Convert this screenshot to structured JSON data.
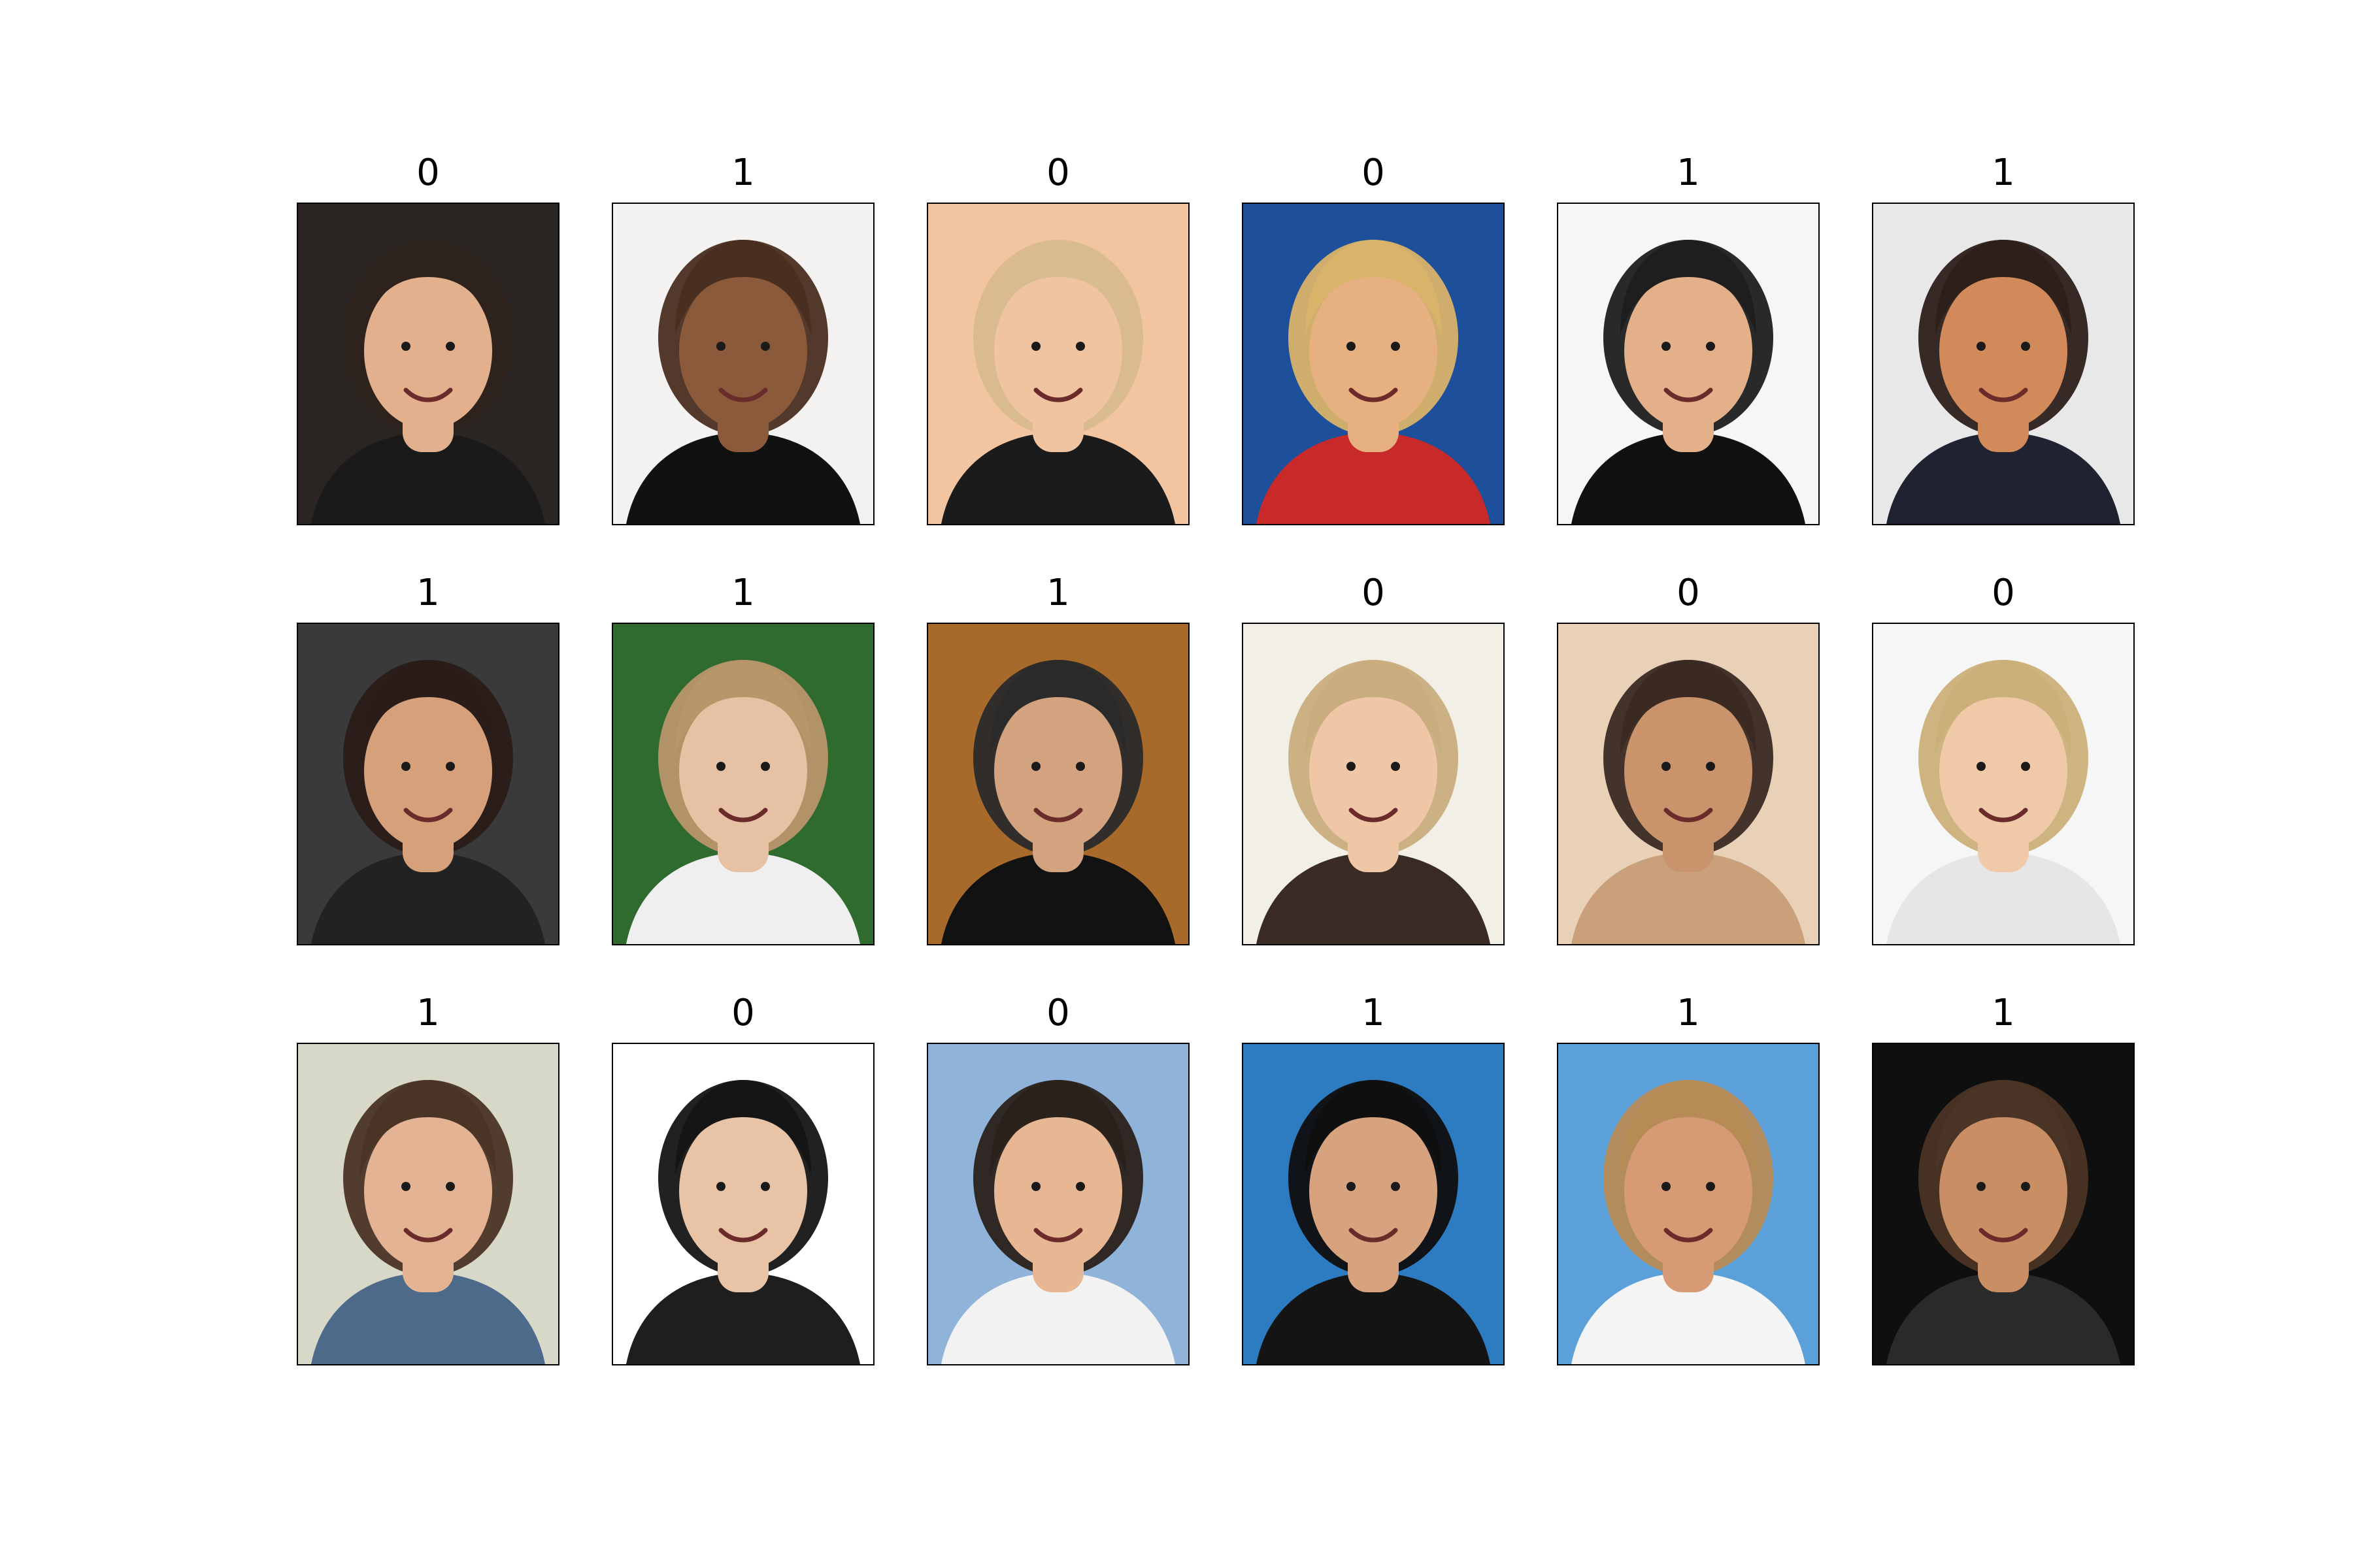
{
  "figure": {
    "grid": {
      "rows": 3,
      "cols": 6
    },
    "items": [
      {
        "label": "0",
        "bg": "#2a2522",
        "skin": "#e3b08d",
        "hair": "#2e221d",
        "clothes": "#1a1a1a"
      },
      {
        "label": "1",
        "bg": "#f3f2f0",
        "skin": "#8a5a3a",
        "hair": "#4a2e20",
        "clothes": "#111111"
      },
      {
        "label": "0",
        "bg": "#f2c5a0",
        "skin": "#f1c4a1",
        "hair": "#d8bb8e",
        "clothes": "#1b1b1b"
      },
      {
        "label": "0",
        "bg": "#1d4f9a",
        "skin": "#e6b080",
        "hair": "#d9b36a",
        "clothes": "#c82a2a"
      },
      {
        "label": "1",
        "bg": "#f6f6f6",
        "skin": "#e3b08a",
        "hair": "#1e1e1e",
        "clothes": "#111111"
      },
      {
        "label": "1",
        "bg": "#e8e8e8",
        "skin": "#d28a5a",
        "hair": "#2d1f1a",
        "clothes": "#1f2230"
      },
      {
        "label": "1",
        "bg": "#3a3a3a",
        "skin": "#d6a07a",
        "hair": "#2a1c18",
        "clothes": "#222222"
      },
      {
        "label": "1",
        "bg": "#2f6a2f",
        "skin": "#e7c1a3",
        "hair": "#b9956a",
        "clothes": "#f0efef"
      },
      {
        "label": "1",
        "bg": "#a86a2a",
        "skin": "#d3a27e",
        "hair": "#2a2a2a",
        "clothes": "#121212"
      },
      {
        "label": "0",
        "bg": "#f2efe6",
        "skin": "#f0c7a6",
        "hair": "#c9ad7f",
        "clothes": "#3a2c24"
      },
      {
        "label": "0",
        "bg": "#e8d1b7",
        "skin": "#c9946b",
        "hair": "#3a2a22",
        "clothes": "#caa07a"
      },
      {
        "label": "0",
        "bg": "#f6f6f6",
        "skin": "#f0c9a8",
        "hair": "#cbb07a",
        "clothes": "#e6e6e6"
      },
      {
        "label": "1",
        "bg": "#d8d8c8",
        "skin": "#e3b394",
        "hair": "#4a3426",
        "clothes": "#4d6a8a"
      },
      {
        "label": "0",
        "bg": "#ffffff",
        "skin": "#e8c3a6",
        "hair": "#151515",
        "clothes": "#1e1e1e"
      },
      {
        "label": "0",
        "bg": "#8fb3d9",
        "skin": "#e6b792",
        "hair": "#2a211b",
        "clothes": "#f2f2f2"
      },
      {
        "label": "1",
        "bg": "#2d7cc2",
        "skin": "#d7a37f",
        "hair": "#0f0f0f",
        "clothes": "#141414"
      },
      {
        "label": "1",
        "bg": "#5ba0d8",
        "skin": "#d69b74",
        "hair": "#b78b55",
        "clothes": "#f4f4f4"
      },
      {
        "label": "1",
        "bg": "#0f0f0f",
        "skin": "#c98e63",
        "hair": "#4a3425",
        "clothes": "#2a2a2a"
      }
    ]
  }
}
